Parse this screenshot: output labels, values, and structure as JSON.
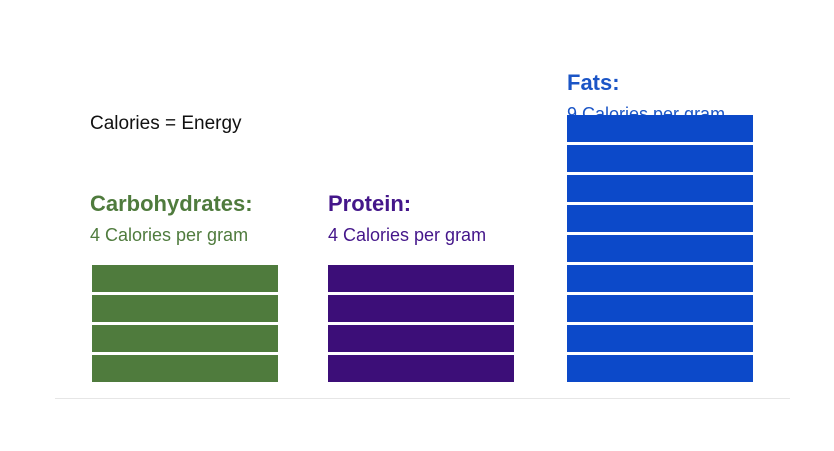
{
  "heading": "Calories = Energy",
  "macros": [
    {
      "id": "carbohydrates",
      "name": "Carbohydrates:",
      "rate_text": "4 Calories per gram",
      "calories_per_gram": 4,
      "color": "#4f7b3d",
      "text_color": "#4f7b3d"
    },
    {
      "id": "protein",
      "name": "Protein:",
      "rate_text": "4 Calories per gram",
      "calories_per_gram": 4,
      "color": "#3c0e78",
      "text_color": "#44168a"
    },
    {
      "id": "fats",
      "name": "Fats:",
      "rate_text": "9 Calories per gram",
      "calories_per_gram": 9,
      "color": "#0c49c9",
      "text_color": "#1b55c6"
    }
  ]
}
